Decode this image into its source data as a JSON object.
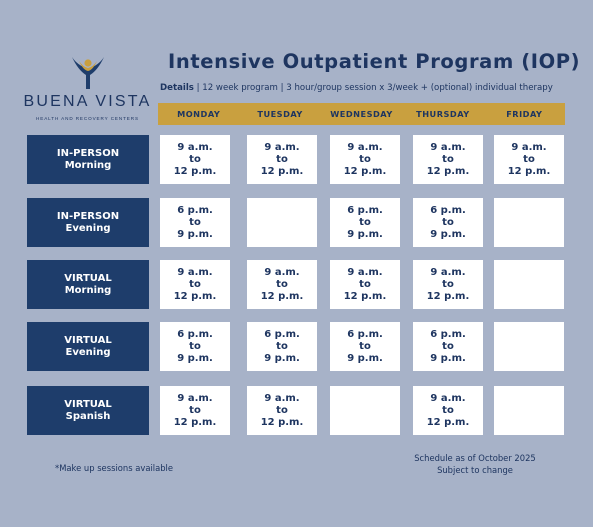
{
  "logo": {
    "name": "BUENA VISTA",
    "subtitle": "HEALTH AND RECOVERY CENTERS",
    "colors": {
      "figure": "#1e3d6b",
      "accent": "#c9a03f"
    }
  },
  "title": "Intensive Outpatient Program (IOP)",
  "details": {
    "label": "Details",
    "text": " | 12 week program | 3 hour/group session x 3/week + (optional) individual therapy"
  },
  "days": [
    "MONDAY",
    "TUESDAY",
    "WEDNESDAY",
    "THURSDAY",
    "FRIDAY"
  ],
  "rows": [
    {
      "line1": "IN-PERSON",
      "line2": "Morning",
      "cells": [
        [
          "9 a.m.",
          "to",
          "12 p.m."
        ],
        [
          "9 a.m.",
          "to",
          "12 p.m."
        ],
        [
          "9 a.m.",
          "to",
          "12 p.m."
        ],
        [
          "9 a.m.",
          "to",
          "12 p.m."
        ],
        [
          "9 a.m.",
          "to",
          "12 p.m."
        ]
      ]
    },
    {
      "line1": "IN-PERSON",
      "line2": "Evening",
      "cells": [
        [
          "6 p.m.",
          "to",
          "9 p.m."
        ],
        [],
        [
          "6 p.m.",
          "to",
          "9 p.m."
        ],
        [
          "6 p.m.",
          "to",
          "9 p.m."
        ],
        []
      ]
    },
    {
      "line1": "VIRTUAL",
      "line2": "Morning",
      "cells": [
        [
          "9 a.m.",
          "to",
          "12 p.m."
        ],
        [
          "9 a.m.",
          "to",
          "12 p.m."
        ],
        [
          "9 a.m.",
          "to",
          "12 p.m."
        ],
        [
          "9 a.m.",
          "to",
          "12 p.m."
        ],
        []
      ]
    },
    {
      "line1": "VIRTUAL",
      "line2": "Evening",
      "cells": [
        [
          "6 p.m.",
          "to",
          "9 p.m."
        ],
        [
          "6 p.m.",
          "to",
          "9 p.m."
        ],
        [
          "6 p.m.",
          "to",
          "9 p.m."
        ],
        [
          "6 p.m.",
          "to",
          "9 p.m."
        ],
        []
      ]
    },
    {
      "line1": "VIRTUAL",
      "line2": "Spanish",
      "cells": [
        [
          "9 a.m.",
          "to",
          "12 p.m."
        ],
        [
          "9 a.m.",
          "to",
          "12 p.m."
        ],
        [],
        [
          "9 a.m.",
          "to",
          "12 p.m."
        ],
        []
      ]
    }
  ],
  "footnote": "*Make up sessions available",
  "schedule_note": {
    "line1": "Schedule as of October 2025",
    "line2": "Subject to change"
  }
}
